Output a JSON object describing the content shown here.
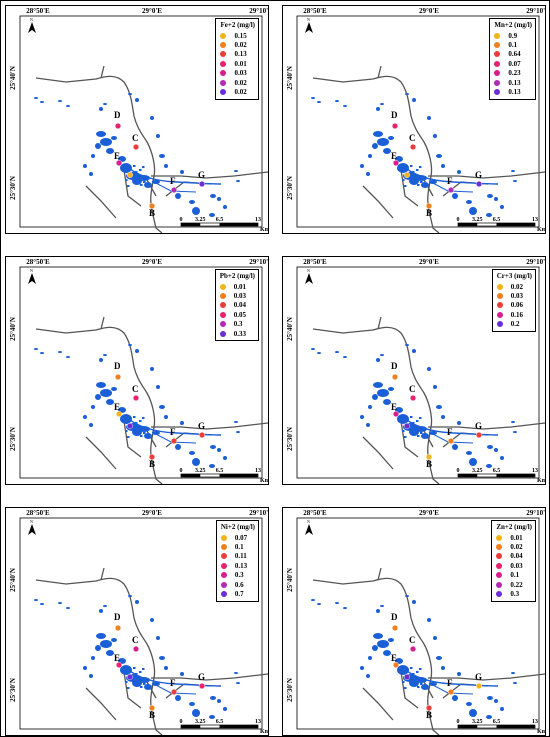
{
  "axis": {
    "lon_labels": [
      "28°50'E",
      "29°0'E",
      "29°10'E"
    ],
    "lat_labels": [
      "25°40'N",
      "25°30'N"
    ],
    "north_label": "N"
  },
  "scale_bar": {
    "ticks": [
      "0",
      "3.25",
      "6.5",
      "13"
    ],
    "unit": "Km"
  },
  "site_labels": [
    "B",
    "C",
    "D",
    "E",
    "F",
    "G"
  ],
  "panels": [
    {
      "name": "fe",
      "title": "Fe+2 (mg/l)",
      "legend": [
        {
          "value": "0.15",
          "color": "#f2b41b"
        },
        {
          "value": "0.02",
          "color": "#f07f1d"
        },
        {
          "value": "0.13",
          "color": "#ea3d3a"
        },
        {
          "value": "0.01",
          "color": "#e8226e"
        },
        {
          "value": "0.03",
          "color": "#d81d8e"
        },
        {
          "value": "0.02",
          "color": "#b12bb5"
        },
        {
          "value": "0.02",
          "color": "#6a2dd6"
        }
      ],
      "site_colors": {
        "B": "#f07f1d",
        "C": "#ea3d3a",
        "D": "#e8226e",
        "E": "#d81d8e",
        "F": "#b12bb5",
        "G": "#6a2dd6",
        "A": "#f2b41b"
      }
    },
    {
      "name": "mn",
      "title": "Mn+2 (mg/l)",
      "legend": [
        {
          "value": "0.9",
          "color": "#f2b41b"
        },
        {
          "value": "0.1",
          "color": "#f07f1d"
        },
        {
          "value": "0.64",
          "color": "#ea3d3a"
        },
        {
          "value": "0.07",
          "color": "#e8226e"
        },
        {
          "value": "0.23",
          "color": "#d81d8e"
        },
        {
          "value": "0.13",
          "color": "#b12bb5"
        },
        {
          "value": "0.13",
          "color": "#6a2dd6"
        }
      ],
      "site_colors": {
        "B": "#f07f1d",
        "C": "#ea3d3a",
        "D": "#e8226e",
        "E": "#d81d8e",
        "F": "#b12bb5",
        "G": "#6a2dd6",
        "A": "#f2b41b"
      }
    },
    {
      "name": "pb",
      "title": "Pb+2 (mg/l)",
      "legend": [
        {
          "value": "0.01",
          "color": "#f2b41b"
        },
        {
          "value": "0.03",
          "color": "#f07f1d"
        },
        {
          "value": "0.04",
          "color": "#ea3d3a"
        },
        {
          "value": "0.05",
          "color": "#e8226e"
        },
        {
          "value": "0.3",
          "color": "#b12bb5"
        },
        {
          "value": "0.33",
          "color": "#6a2dd6"
        }
      ],
      "site_colors": {
        "B": "#ea3d3a",
        "C": "#e8226e",
        "D": "#f07f1d",
        "E": "#f2b41b",
        "F": "#ea3d3a",
        "G": "#ea3d3a",
        "A": "#6a2dd6"
      }
    },
    {
      "name": "cr",
      "title": "Cr+3 (mg/l)",
      "legend": [
        {
          "value": "0.02",
          "color": "#f2b41b"
        },
        {
          "value": "0.03",
          "color": "#f07f1d"
        },
        {
          "value": "0.06",
          "color": "#ea3d3a"
        },
        {
          "value": "0.16",
          "color": "#d81d8e"
        },
        {
          "value": "0.2",
          "color": "#6a2dd6"
        }
      ],
      "site_colors": {
        "B": "#f2b41b",
        "C": "#e8226e",
        "D": "#f07f1d",
        "E": "#d81d8e",
        "F": "#f07f1d",
        "G": "#ea3d3a",
        "A": "#6a2dd6"
      }
    },
    {
      "name": "ni",
      "title": "Ni+2 (mg/l)",
      "legend": [
        {
          "value": "0.07",
          "color": "#f2b41b"
        },
        {
          "value": "0.1",
          "color": "#f07f1d"
        },
        {
          "value": "0.11",
          "color": "#ea3d3a"
        },
        {
          "value": "0.13",
          "color": "#e8226e"
        },
        {
          "value": "0.3",
          "color": "#d81d8e"
        },
        {
          "value": "0.6",
          "color": "#b12bb5"
        },
        {
          "value": "0.7",
          "color": "#6a2dd6"
        }
      ],
      "site_colors": {
        "B": "#f07f1d",
        "C": "#d81d8e",
        "D": "#f07f1d",
        "E": "#e8226e",
        "F": "#ea3d3a",
        "G": "#e8226e",
        "A": "#6a2dd6"
      }
    },
    {
      "name": "zn",
      "title": "Zn+2 (mg/l)",
      "legend": [
        {
          "value": "0.01",
          "color": "#f2b41b"
        },
        {
          "value": "0.02",
          "color": "#f07f1d"
        },
        {
          "value": "0.04",
          "color": "#ea3d3a"
        },
        {
          "value": "0.03",
          "color": "#e8226e"
        },
        {
          "value": "0.1",
          "color": "#d81d8e"
        },
        {
          "value": "0.22",
          "color": "#b12bb5"
        },
        {
          "value": "0.3",
          "color": "#6a2dd6"
        }
      ],
      "site_colors": {
        "B": "#ea3d3a",
        "C": "#d81d8e",
        "D": "#f07f1d",
        "E": "#f07f1d",
        "F": "#f07f1d",
        "G": "#f2b41b",
        "A": "#6a2dd6"
      }
    }
  ]
}
